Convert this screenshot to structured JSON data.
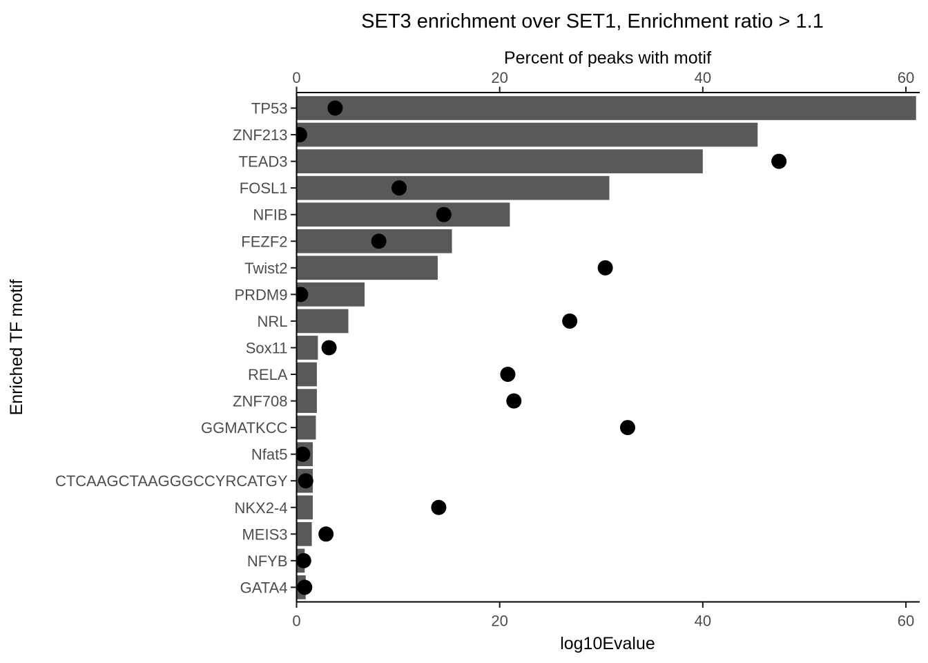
{
  "title": "SET3 enrichment over SET1, Enrichment ratio > 1.1",
  "axes": {
    "top": {
      "label": "Percent of peaks with motif",
      "tick_labels": [
        "0",
        "20",
        "40",
        "60"
      ],
      "tick_values": [
        0,
        20,
        40,
        60
      ]
    },
    "bottom": {
      "label": "log10Evalue",
      "tick_labels": [
        "0",
        "20",
        "40",
        "60"
      ],
      "tick_values": [
        0,
        20,
        40,
        60
      ]
    },
    "left": {
      "label": "Enriched TF motif"
    }
  },
  "colors": {
    "bar": "#595959",
    "point": "#000000",
    "axis_line": "#000000",
    "tick_mark": "#1a1a1a",
    "tick_label": "#4d4d4d",
    "title": "#000000",
    "background": "#ffffff"
  },
  "chart_data": {
    "type": "bar",
    "orientation": "horizontal",
    "title": "SET3 enrichment over SET1, Enrichment ratio > 1.1",
    "categories": [
      "TP53",
      "ZNF213",
      "TEAD3",
      "FOSL1",
      "NFIB",
      "FEZF2",
      "Twist2",
      "PRDM9",
      "NRL",
      "Sox11",
      "RELA",
      "ZNF708",
      "GGMATKCC",
      "Nfat5",
      "CTCAAGCTAAGGGCCYRCATGY",
      "NKX2-4",
      "MEIS3",
      "NFYB",
      "GATA4"
    ],
    "series": [
      {
        "name": "Percent of peaks with motif",
        "geom": "bar",
        "axis": "top",
        "values": [
          61.0,
          45.4,
          40.0,
          30.8,
          21.0,
          15.3,
          13.9,
          6.7,
          5.1,
          2.1,
          2.0,
          2.0,
          1.9,
          1.6,
          1.6,
          1.6,
          1.5,
          0.8,
          0.9
        ]
      },
      {
        "name": "log10Evalue",
        "geom": "point",
        "axis": "bottom",
        "values": [
          3.8,
          0.3,
          47.5,
          10.1,
          14.5,
          8.1,
          30.4,
          0.4,
          26.9,
          3.2,
          20.8,
          21.4,
          32.6,
          0.6,
          0.9,
          14.0,
          2.9,
          0.7,
          0.8
        ]
      }
    ],
    "xlabel_top": "Percent of peaks with motif",
    "xlabel_bottom": "log10Evalue",
    "ylabel": "Enriched TF motif",
    "xlim": [
      0,
      61.3
    ],
    "grid": false,
    "legend": false
  }
}
